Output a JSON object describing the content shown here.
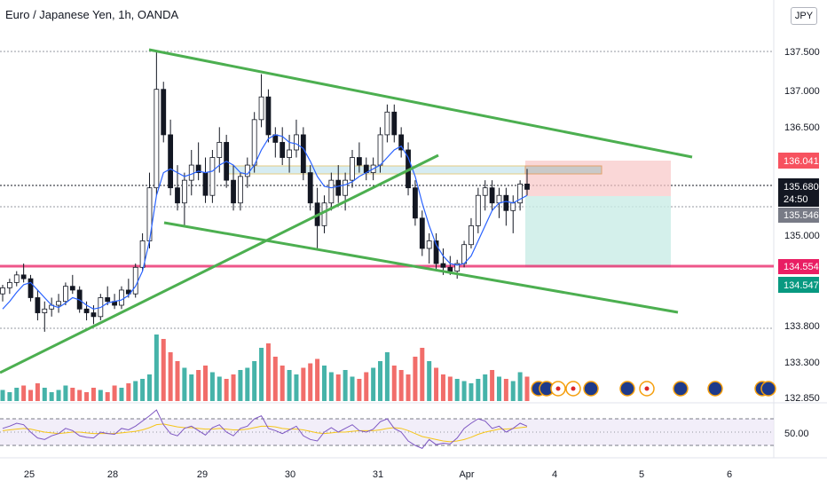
{
  "chart_title": "Euro / Japanese Yen, 1h, OANDA",
  "currency_label": "JPY",
  "colors": {
    "up": "#26a69a",
    "down": "#ef5350",
    "ma": "#2962ff",
    "trend": "#4caf50",
    "pink_line": "#e91e63",
    "rsi": "#7e57c2",
    "rsi_ma": "#f5c518"
  },
  "chart_data": [
    {
      "type": "candlestick",
      "title": "Euro / Japanese Yen, 1h, OANDA",
      "x_ticks": [
        "25",
        "28",
        "29",
        "30",
        "31",
        "Apr",
        "4",
        "5",
        "6"
      ],
      "y_ticks": [
        "137.500",
        "137.000",
        "136.500",
        "135.000",
        "133.800",
        "133.300",
        "132.850"
      ],
      "ylim": [
        132.8,
        138.0
      ],
      "price_labels": [
        {
          "value": "136.041",
          "role": "stop"
        },
        {
          "value": "135.680",
          "role": "last"
        },
        {
          "value": "24:50",
          "role": "countdown"
        },
        {
          "value": "135.546",
          "role": "entry"
        },
        {
          "value": "134.554",
          "role": "line"
        },
        {
          "value": "134.547",
          "role": "target"
        }
      ],
      "candles": [
        [
          134.3,
          134.42,
          134.2,
          134.38
        ],
        [
          134.38,
          134.5,
          134.3,
          134.45
        ],
        [
          134.45,
          134.6,
          134.4,
          134.55
        ],
        [
          134.55,
          134.7,
          134.45,
          134.5
        ],
        [
          134.5,
          134.55,
          134.2,
          134.25
        ],
        [
          134.25,
          134.35,
          133.95,
          134.05
        ],
        [
          134.05,
          134.2,
          133.8,
          134.1
        ],
        [
          134.1,
          134.25,
          134.0,
          134.15
        ],
        [
          134.15,
          134.3,
          134.05,
          134.2
        ],
        [
          134.2,
          134.45,
          134.15,
          134.4
        ],
        [
          134.4,
          134.55,
          134.3,
          134.35
        ],
        [
          134.35,
          134.4,
          134.05,
          134.1
        ],
        [
          134.1,
          134.2,
          133.95,
          134.05
        ],
        [
          134.05,
          134.15,
          133.9,
          134.0
        ],
        [
          134.0,
          134.3,
          133.95,
          134.25
        ],
        [
          134.25,
          134.4,
          134.15,
          134.2
        ],
        [
          134.2,
          134.3,
          134.1,
          134.15
        ],
        [
          134.15,
          134.4,
          134.1,
          134.35
        ],
        [
          134.35,
          134.5,
          134.25,
          134.3
        ],
        [
          134.3,
          134.7,
          134.25,
          134.65
        ],
        [
          134.65,
          135.1,
          134.6,
          135.0
        ],
        [
          135.0,
          135.9,
          134.9,
          135.7
        ],
        [
          135.7,
          137.5,
          135.6,
          137.0
        ],
        [
          137.0,
          137.1,
          136.3,
          136.4
        ],
        [
          136.4,
          136.6,
          135.6,
          135.7
        ],
        [
          135.7,
          136.0,
          135.4,
          135.5
        ],
        [
          135.5,
          135.9,
          135.2,
          135.8
        ],
        [
          135.8,
          136.2,
          135.6,
          136.0
        ],
        [
          136.0,
          136.3,
          135.8,
          135.9
        ],
        [
          135.9,
          136.1,
          135.5,
          135.6
        ],
        [
          135.6,
          136.2,
          135.5,
          136.1
        ],
        [
          136.1,
          136.5,
          135.9,
          136.3
        ],
        [
          136.3,
          136.4,
          135.7,
          135.8
        ],
        [
          135.8,
          136.0,
          135.4,
          135.5
        ],
        [
          135.5,
          135.9,
          135.4,
          135.85
        ],
        [
          135.85,
          136.1,
          135.7,
          136.0
        ],
        [
          136.0,
          136.7,
          135.9,
          136.6
        ],
        [
          136.6,
          137.2,
          136.5,
          136.9
        ],
        [
          136.9,
          137.0,
          136.3,
          136.4
        ],
        [
          136.4,
          136.5,
          136.1,
          136.3
        ],
        [
          136.3,
          136.5,
          136.0,
          136.1
        ],
        [
          136.1,
          136.4,
          135.9,
          136.2
        ],
        [
          136.2,
          136.6,
          136.1,
          136.4
        ],
        [
          136.4,
          136.5,
          135.8,
          135.9
        ],
        [
          135.9,
          136.0,
          135.4,
          135.5
        ],
        [
          135.5,
          135.7,
          134.9,
          135.2
        ],
        [
          135.2,
          135.6,
          135.1,
          135.5
        ],
        [
          135.5,
          135.9,
          135.4,
          135.8
        ],
        [
          135.8,
          136.0,
          135.5,
          135.6
        ],
        [
          135.6,
          135.9,
          135.4,
          135.8
        ],
        [
          135.8,
          136.2,
          135.7,
          136.1
        ],
        [
          136.1,
          136.3,
          135.9,
          136.0
        ],
        [
          136.0,
          136.1,
          135.8,
          135.9
        ],
        [
          135.9,
          136.1,
          135.8,
          136.0
        ],
        [
          136.0,
          136.5,
          135.9,
          136.4
        ],
        [
          136.4,
          136.8,
          136.3,
          136.7
        ],
        [
          136.7,
          136.8,
          136.3,
          136.4
        ],
        [
          136.4,
          136.5,
          136.1,
          136.2
        ],
        [
          136.2,
          136.3,
          135.6,
          135.7
        ],
        [
          135.7,
          135.8,
          135.2,
          135.3
        ],
        [
          135.3,
          135.4,
          134.8,
          134.9
        ],
        [
          134.9,
          135.1,
          134.7,
          135.0
        ],
        [
          135.0,
          135.1,
          134.6,
          134.7
        ],
        [
          134.7,
          134.9,
          134.55,
          134.65
        ],
        [
          134.65,
          134.8,
          134.55,
          134.6
        ],
        [
          134.6,
          134.75,
          134.5,
          134.7
        ],
        [
          134.7,
          135.0,
          134.65,
          134.95
        ],
        [
          134.95,
          135.3,
          134.9,
          135.2
        ],
        [
          135.2,
          135.7,
          135.1,
          135.6
        ],
        [
          135.6,
          135.8,
          135.4,
          135.7
        ],
        [
          135.7,
          135.8,
          135.4,
          135.5
        ],
        [
          135.5,
          135.7,
          135.3,
          135.6
        ],
        [
          135.6,
          135.7,
          135.2,
          135.4
        ],
        [
          135.4,
          135.6,
          135.1,
          135.5
        ],
        [
          135.5,
          135.8,
          135.4,
          135.75
        ],
        [
          135.75,
          135.95,
          135.6,
          135.68
        ]
      ],
      "ma_line": [
        134.1,
        134.2,
        134.32,
        134.42,
        134.45,
        134.35,
        134.25,
        134.15,
        134.12,
        134.18,
        134.25,
        134.22,
        134.15,
        134.1,
        134.12,
        134.18,
        134.2,
        134.22,
        134.28,
        134.4,
        134.6,
        135.0,
        135.6,
        135.9,
        135.95,
        135.9,
        135.85,
        135.88,
        135.92,
        135.9,
        135.92,
        136.0,
        136.05,
        136.0,
        135.9,
        135.88,
        136.0,
        136.2,
        136.35,
        136.4,
        136.38,
        136.3,
        136.28,
        136.22,
        136.05,
        135.85,
        135.72,
        135.7,
        135.72,
        135.74,
        135.78,
        135.85,
        135.9,
        135.95,
        136.0,
        136.1,
        136.2,
        136.25,
        136.1,
        135.85,
        135.5,
        135.2,
        134.95,
        134.8,
        134.7,
        134.68,
        134.7,
        134.8,
        135.0,
        135.2,
        135.4,
        135.5,
        135.52,
        135.5,
        135.55,
        135.6
      ],
      "volume": [
        5,
        4,
        6,
        7,
        5,
        8,
        6,
        4,
        5,
        7,
        6,
        5,
        4,
        6,
        5,
        4,
        7,
        6,
        8,
        9,
        10,
        12,
        30,
        28,
        22,
        18,
        15,
        12,
        14,
        16,
        13,
        11,
        10,
        12,
        14,
        15,
        18,
        24,
        26,
        20,
        16,
        14,
        12,
        15,
        17,
        19,
        16,
        13,
        12,
        14,
        11,
        10,
        13,
        15,
        18,
        22,
        16,
        14,
        12,
        20,
        24,
        18,
        15,
        12,
        11,
        10,
        9,
        8,
        10,
        12,
        14,
        11,
        10,
        9,
        13,
        11
      ],
      "volume_max": 32,
      "rsi": {
        "ticks": [
          "50.00"
        ],
        "levels": [
          70,
          50,
          30
        ],
        "ylim": [
          20,
          80
        ],
        "values": [
          55,
          58,
          62,
          60,
          50,
          42,
          40,
          45,
          48,
          55,
          52,
          45,
          43,
          42,
          50,
          48,
          47,
          55,
          53,
          58,
          65,
          72,
          80,
          60,
          48,
          45,
          55,
          58,
          52,
          46,
          56,
          60,
          50,
          45,
          55,
          58,
          68,
          72,
          55,
          52,
          48,
          53,
          58,
          45,
          40,
          38,
          50,
          56,
          50,
          55,
          60,
          52,
          50,
          54,
          64,
          68,
          55,
          50,
          38,
          32,
          28,
          40,
          33,
          35,
          34,
          42,
          55,
          62,
          68,
          65,
          55,
          58,
          50,
          55,
          62,
          58
        ],
        "ma": [
          52,
          53,
          54,
          55,
          54,
          52,
          50,
          49,
          48,
          49,
          50,
          50,
          49,
          48,
          48,
          48,
          48,
          49,
          50,
          51,
          53,
          56,
          60,
          61,
          59,
          57,
          56,
          56,
          55,
          54,
          54,
          55,
          54,
          53,
          53,
          54,
          56,
          58,
          58,
          57,
          55,
          54,
          54,
          53,
          51,
          49,
          48,
          49,
          50,
          50,
          51,
          52,
          52,
          52,
          53,
          55,
          56,
          55,
          52,
          48,
          44,
          42,
          40,
          38,
          37,
          38,
          40,
          43,
          47,
          50,
          52,
          54,
          54,
          55,
          56,
          57
        ]
      }
    }
  ]
}
